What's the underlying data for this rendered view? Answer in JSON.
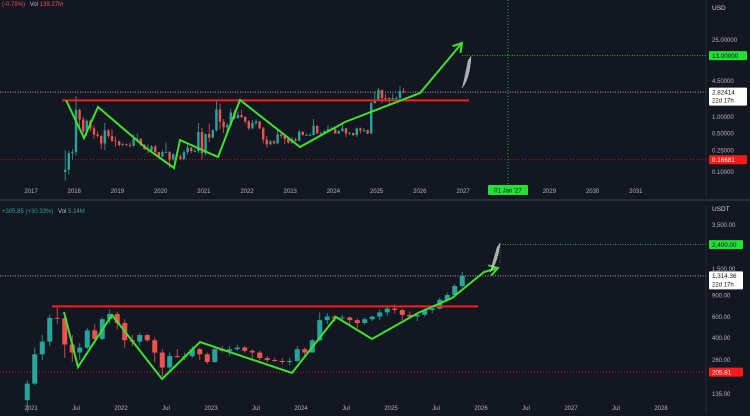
{
  "colors": {
    "background": "#131722",
    "up": "#26a69a",
    "down": "#ef5350",
    "trend": "#3ee12e",
    "support": "#ff1a1a",
    "target": "#22e035",
    "grid": "#1e222d",
    "text": "#b2b5be"
  },
  "top_header": {
    "change": "(-0.79%)",
    "vol_label": "Vol",
    "vol_value": "139.27M"
  },
  "bottom_header": {
    "change": "+305.85 (+30.33%)",
    "vol_label": "Vol",
    "vol_value": "5.14M"
  },
  "chart_data": [
    {
      "type": "candlestick",
      "currency": "USD",
      "scale": "log",
      "y_ticks": [
        "25.00000",
        "4.50000",
        "1.00000",
        "0.50000",
        "0.25000",
        "0.10000"
      ],
      "x_ticks": [
        "2017",
        "2018",
        "2019",
        "2020",
        "2021",
        "2022",
        "2023",
        "2024",
        "2025",
        "2026",
        "2027",
        "2028",
        "2029",
        "2030",
        "2031"
      ],
      "price_badges": [
        {
          "label": "13.00000",
          "value": 13.0,
          "style": "target"
        },
        {
          "label": "2.82414",
          "sublabel": "22d 17h",
          "value": 2.82414,
          "style": "current"
        },
        {
          "label": "0.16681",
          "value": 0.16681,
          "style": "low"
        }
      ],
      "time_badge": "01 Jan '27",
      "support_level": 2.0,
      "candles": [
        [
          "2017-10",
          0.1,
          0.25,
          0.07,
          0.11
        ],
        [
          "2017-11",
          0.11,
          0.24,
          0.09,
          0.22
        ],
        [
          "2017-12",
          0.22,
          0.26,
          0.17,
          0.23
        ],
        [
          "2018-01",
          0.23,
          2.4,
          0.2,
          1.35
        ],
        [
          "2018-02",
          1.35,
          1.4,
          0.6,
          0.9
        ],
        [
          "2018-03",
          0.9,
          1.0,
          0.5,
          0.55
        ],
        [
          "2018-04",
          0.55,
          0.9,
          0.45,
          0.85
        ],
        [
          "2018-05",
          0.85,
          0.9,
          0.55,
          0.62
        ],
        [
          "2018-06",
          0.62,
          0.7,
          0.4,
          0.48
        ],
        [
          "2018-07",
          0.48,
          0.55,
          0.42,
          0.45
        ],
        [
          "2018-08",
          0.45,
          0.48,
          0.26,
          0.33
        ],
        [
          "2018-09",
          0.33,
          0.78,
          0.25,
          0.57
        ],
        [
          "2018-10",
          0.57,
          0.6,
          0.41,
          0.45
        ],
        [
          "2018-11",
          0.45,
          0.6,
          0.35,
          0.37
        ],
        [
          "2018-12",
          0.37,
          0.44,
          0.29,
          0.36
        ],
        [
          "2019-01",
          0.36,
          0.37,
          0.29,
          0.31
        ],
        [
          "2019-02",
          0.31,
          0.34,
          0.29,
          0.32
        ],
        [
          "2019-03",
          0.32,
          0.33,
          0.29,
          0.31
        ],
        [
          "2019-04",
          0.31,
          0.34,
          0.28,
          0.3
        ],
        [
          "2019-05",
          0.3,
          0.48,
          0.29,
          0.4
        ],
        [
          "2019-06",
          0.4,
          0.5,
          0.37,
          0.4
        ],
        [
          "2019-07",
          0.4,
          0.41,
          0.29,
          0.31
        ],
        [
          "2019-08",
          0.31,
          0.32,
          0.25,
          0.26
        ],
        [
          "2019-09",
          0.26,
          0.32,
          0.22,
          0.25
        ],
        [
          "2019-10",
          0.25,
          0.31,
          0.24,
          0.29
        ],
        [
          "2019-11",
          0.29,
          0.31,
          0.21,
          0.23
        ],
        [
          "2019-12",
          0.23,
          0.23,
          0.18,
          0.19
        ],
        [
          "2020-01",
          0.19,
          0.25,
          0.19,
          0.23
        ],
        [
          "2020-02",
          0.23,
          0.34,
          0.22,
          0.23
        ],
        [
          "2020-03",
          0.23,
          0.24,
          0.12,
          0.17
        ],
        [
          "2020-04",
          0.17,
          0.22,
          0.16,
          0.21
        ],
        [
          "2020-05",
          0.21,
          0.21,
          0.18,
          0.19
        ],
        [
          "2020-06",
          0.19,
          0.21,
          0.17,
          0.17
        ],
        [
          "2020-07",
          0.17,
          0.25,
          0.17,
          0.23
        ],
        [
          "2020-08",
          0.23,
          0.32,
          0.21,
          0.28
        ],
        [
          "2020-09",
          0.28,
          0.28,
          0.22,
          0.24
        ],
        [
          "2020-10",
          0.24,
          0.26,
          0.23,
          0.24
        ],
        [
          "2020-11",
          0.24,
          0.78,
          0.22,
          0.53
        ],
        [
          "2020-12",
          0.53,
          0.63,
          0.17,
          0.22
        ],
        [
          "2021-01",
          0.22,
          0.5,
          0.2,
          0.49
        ],
        [
          "2021-02",
          0.49,
          0.76,
          0.35,
          0.42
        ],
        [
          "2021-03",
          0.42,
          0.6,
          0.41,
          0.57
        ],
        [
          "2021-04",
          0.57,
          1.96,
          0.55,
          1.37
        ],
        [
          "2021-05",
          1.37,
          1.75,
          0.6,
          0.82
        ],
        [
          "2021-06",
          0.82,
          0.92,
          0.51,
          0.65
        ],
        [
          "2021-07",
          0.65,
          0.78,
          0.51,
          0.71
        ],
        [
          "2021-08",
          0.71,
          1.41,
          0.7,
          1.2
        ],
        [
          "2021-09",
          1.2,
          1.35,
          0.9,
          0.95
        ],
        [
          "2021-10",
          0.95,
          1.25,
          0.93,
          1.08
        ],
        [
          "2021-11",
          1.08,
          1.35,
          0.95,
          1.0
        ],
        [
          "2021-12",
          1.0,
          1.05,
          0.76,
          0.83
        ],
        [
          "2022-01",
          0.83,
          0.88,
          0.58,
          0.62
        ],
        [
          "2022-02",
          0.62,
          0.88,
          0.6,
          0.78
        ],
        [
          "2022-03",
          0.78,
          0.91,
          0.7,
          0.83
        ],
        [
          "2022-04",
          0.83,
          0.85,
          0.6,
          0.62
        ],
        [
          "2022-05",
          0.62,
          0.66,
          0.33,
          0.39
        ],
        [
          "2022-06",
          0.39,
          0.45,
          0.28,
          0.32
        ],
        [
          "2022-07",
          0.32,
          0.38,
          0.31,
          0.36
        ],
        [
          "2022-08",
          0.36,
          0.38,
          0.32,
          0.33
        ],
        [
          "2022-09",
          0.33,
          0.56,
          0.32,
          0.48
        ],
        [
          "2022-10",
          0.48,
          0.5,
          0.41,
          0.45
        ],
        [
          "2022-11",
          0.45,
          0.46,
          0.32,
          0.4
        ],
        [
          "2022-12",
          0.4,
          0.41,
          0.33,
          0.34
        ],
        [
          "2023-01",
          0.34,
          0.43,
          0.33,
          0.39
        ],
        [
          "2023-02",
          0.39,
          0.42,
          0.36,
          0.37
        ],
        [
          "2023-03",
          0.37,
          0.58,
          0.36,
          0.54
        ],
        [
          "2023-04",
          0.54,
          0.55,
          0.46,
          0.47
        ],
        [
          "2023-05",
          0.47,
          0.5,
          0.45,
          0.47
        ],
        [
          "2023-06",
          0.47,
          0.5,
          0.45,
          0.47
        ],
        [
          "2023-07",
          0.47,
          0.92,
          0.46,
          0.69
        ],
        [
          "2023-08",
          0.69,
          0.7,
          0.5,
          0.5
        ],
        [
          "2023-09",
          0.5,
          0.54,
          0.48,
          0.5
        ],
        [
          "2023-10",
          0.5,
          0.57,
          0.49,
          0.55
        ],
        [
          "2023-11",
          0.55,
          0.7,
          0.54,
          0.6
        ],
        [
          "2023-12",
          0.6,
          0.66,
          0.58,
          0.61
        ],
        [
          "2024-01",
          0.61,
          0.63,
          0.5,
          0.5
        ],
        [
          "2024-02",
          0.5,
          0.58,
          0.49,
          0.55
        ],
        [
          "2024-03",
          0.55,
          0.74,
          0.54,
          0.62
        ],
        [
          "2024-04",
          0.62,
          0.63,
          0.43,
          0.5
        ],
        [
          "2024-05",
          0.5,
          0.54,
          0.47,
          0.51
        ],
        [
          "2024-06",
          0.51,
          0.52,
          0.45,
          0.47
        ],
        [
          "2024-07",
          0.47,
          0.64,
          0.43,
          0.62
        ],
        [
          "2024-08",
          0.62,
          0.64,
          0.5,
          0.57
        ],
        [
          "2024-09",
          0.57,
          0.63,
          0.53,
          0.58
        ],
        [
          "2024-10",
          0.58,
          0.59,
          0.49,
          0.5
        ],
        [
          "2024-11",
          0.5,
          1.9,
          0.5,
          1.78
        ],
        [
          "2024-12",
          1.78,
          2.9,
          1.78,
          2.08
        ],
        [
          "2025-01",
          2.08,
          3.4,
          2.0,
          3.1
        ],
        [
          "2025-02",
          3.1,
          3.1,
          1.77,
          2.2
        ],
        [
          "2025-03",
          2.2,
          2.6,
          1.9,
          2.1
        ],
        [
          "2025-04",
          2.1,
          2.25,
          1.6,
          2.2
        ],
        [
          "2025-05",
          2.2,
          2.65,
          2.05,
          2.2
        ],
        [
          "2025-06",
          2.2,
          2.35,
          1.9,
          2.2
        ],
        [
          "2025-07",
          2.2,
          3.65,
          2.1,
          2.95
        ],
        [
          "2025-08",
          2.95,
          3.35,
          2.7,
          2.82
        ]
      ]
    },
    {
      "type": "candlestick",
      "currency": "USDT",
      "scale": "log",
      "y_ticks": [
        "3,500.00",
        "1,500.00",
        "900.00",
        "600.00",
        "400.00",
        "260.00",
        "135.00"
      ],
      "x_ticks": [
        "2021",
        "Jul",
        "2022",
        "Jul",
        "2023",
        "Jul",
        "2024",
        "Jul",
        "2025",
        "Jul",
        "2026",
        "Jul",
        "2027",
        "Jul",
        "2028"
      ],
      "price_badges": [
        {
          "label": "2,400.00",
          "value": 2400,
          "style": "target"
        },
        {
          "label": "1,314.36",
          "sublabel": "22d 17h",
          "value": 1314.36,
          "style": "current"
        },
        {
          "label": "205.81",
          "value": 205.81,
          "style": "low"
        }
      ],
      "support_level": 730,
      "candles": [
        [
          "2020-12",
          120,
          175,
          95,
          165
        ],
        [
          "2021-01",
          165,
          330,
          160,
          290
        ],
        [
          "2021-02",
          290,
          420,
          260,
          370
        ],
        [
          "2021-03",
          370,
          620,
          340,
          585
        ],
        [
          "2021-04",
          585,
          730,
          520,
          580
        ],
        [
          "2021-05",
          580,
          650,
          270,
          350
        ],
        [
          "2021-06",
          350,
          420,
          250,
          300
        ],
        [
          "2021-07",
          300,
          360,
          260,
          330
        ],
        [
          "2021-08",
          330,
          480,
          320,
          460
        ],
        [
          "2021-09",
          460,
          520,
          370,
          390
        ],
        [
          "2021-10",
          390,
          590,
          380,
          570
        ],
        [
          "2021-11",
          570,
          690,
          520,
          630
        ],
        [
          "2021-12",
          630,
          660,
          470,
          530
        ],
        [
          "2022-01",
          530,
          570,
          330,
          380
        ],
        [
          "2022-02",
          380,
          420,
          340,
          370
        ],
        [
          "2022-03",
          370,
          440,
          345,
          420
        ],
        [
          "2022-04",
          420,
          430,
          370,
          380
        ],
        [
          "2022-05",
          380,
          400,
          250,
          300
        ],
        [
          "2022-06",
          300,
          320,
          190,
          225
        ],
        [
          "2022-07",
          225,
          300,
          215,
          280
        ],
        [
          "2022-08",
          280,
          320,
          270,
          275
        ],
        [
          "2022-09",
          275,
          300,
          260,
          280
        ],
        [
          "2022-10",
          280,
          340,
          270,
          320
        ],
        [
          "2022-11",
          320,
          330,
          260,
          290
        ],
        [
          "2022-12",
          290,
          300,
          240,
          250
        ],
        [
          "2023-01",
          250,
          330,
          245,
          320
        ],
        [
          "2023-02",
          320,
          340,
          300,
          310
        ],
        [
          "2023-03",
          310,
          340,
          280,
          320
        ],
        [
          "2023-04",
          320,
          350,
          310,
          330
        ],
        [
          "2023-05",
          330,
          340,
          300,
          310
        ],
        [
          "2023-06",
          310,
          320,
          260,
          300
        ],
        [
          "2023-07",
          300,
          310,
          260,
          270
        ],
        [
          "2023-08",
          270,
          280,
          250,
          260
        ],
        [
          "2023-09",
          260,
          270,
          250,
          255
        ],
        [
          "2023-10",
          255,
          270,
          240,
          250
        ],
        [
          "2023-11",
          250,
          270,
          235,
          255
        ],
        [
          "2023-12",
          255,
          340,
          250,
          320
        ],
        [
          "2024-01",
          320,
          330,
          280,
          300
        ],
        [
          "2024-02",
          300,
          390,
          300,
          380
        ],
        [
          "2024-03",
          380,
          650,
          370,
          560
        ],
        [
          "2024-04",
          560,
          640,
          520,
          600
        ],
        [
          "2024-05",
          600,
          620,
          540,
          580
        ],
        [
          "2024-06",
          580,
          620,
          550,
          590
        ],
        [
          "2024-07",
          590,
          600,
          520,
          560
        ],
        [
          "2024-08",
          560,
          580,
          480,
          530
        ],
        [
          "2024-09",
          530,
          590,
          510,
          570
        ],
        [
          "2024-10",
          570,
          610,
          550,
          600
        ],
        [
          "2024-11",
          600,
          690,
          560,
          650
        ],
        [
          "2024-12",
          650,
          720,
          610,
          700
        ],
        [
          "2025-01",
          700,
          760,
          640,
          680
        ],
        [
          "2025-02",
          680,
          700,
          560,
          620
        ],
        [
          "2025-03",
          620,
          660,
          580,
          600
        ],
        [
          "2025-04",
          600,
          640,
          550,
          620
        ],
        [
          "2025-05",
          620,
          700,
          600,
          680
        ],
        [
          "2025-06",
          680,
          720,
          640,
          700
        ],
        [
          "2025-07",
          700,
          860,
          690,
          830
        ],
        [
          "2025-08",
          830,
          950,
          800,
          910
        ],
        [
          "2025-09",
          910,
          1120,
          880,
          1080
        ],
        [
          "2025-10",
          1080,
          1420,
          1050,
          1314.36
        ]
      ]
    }
  ]
}
